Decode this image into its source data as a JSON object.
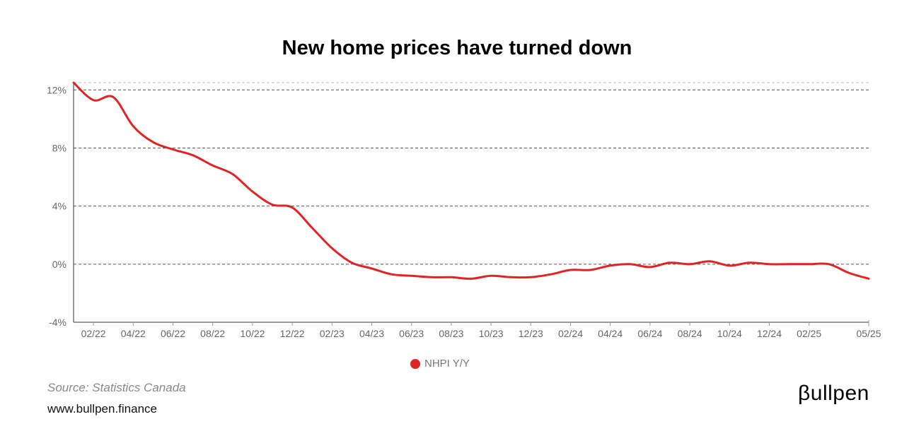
{
  "chart_data": {
    "type": "line",
    "title": "New home prices have turned down",
    "xlabel": "",
    "ylabel": "",
    "ylim": [
      -4,
      12.5
    ],
    "y_ticks": [
      -4,
      0,
      4,
      8,
      12
    ],
    "y_tick_labels": [
      "-4%",
      "0%",
      "4%",
      "8%",
      "12%"
    ],
    "x_tick_labels": [
      "02/22",
      "04/22",
      "06/22",
      "08/22",
      "10/22",
      "12/22",
      "02/23",
      "04/23",
      "06/23",
      "08/23",
      "10/23",
      "12/23",
      "02/24",
      "04/24",
      "06/24",
      "08/24",
      "10/24",
      "12/24",
      "02/25",
      "05/25"
    ],
    "x_tick_months": [
      "2022-02",
      "2022-04",
      "2022-06",
      "2022-08",
      "2022-10",
      "2022-12",
      "2023-02",
      "2023-04",
      "2023-06",
      "2023-08",
      "2023-10",
      "2023-12",
      "2024-02",
      "2024-04",
      "2024-06",
      "2024-08",
      "2024-10",
      "2024-12",
      "2025-02",
      "2025-05"
    ],
    "x_range": [
      "2022-01",
      "2025-05"
    ],
    "grid": "horizontal dashed",
    "legend_position": "bottom-center",
    "series": [
      {
        "name": "NHPI Y/Y",
        "color": "#e02424",
        "x": [
          "2022-01",
          "2022-02",
          "2022-03",
          "2022-04",
          "2022-05",
          "2022-06",
          "2022-07",
          "2022-08",
          "2022-09",
          "2022-10",
          "2022-11",
          "2022-12",
          "2023-01",
          "2023-02",
          "2023-03",
          "2023-04",
          "2023-05",
          "2023-06",
          "2023-07",
          "2023-08",
          "2023-09",
          "2023-10",
          "2023-11",
          "2023-12",
          "2024-01",
          "2024-02",
          "2024-03",
          "2024-04",
          "2024-05",
          "2024-06",
          "2024-07",
          "2024-08",
          "2024-09",
          "2024-10",
          "2024-11",
          "2024-12",
          "2025-01",
          "2025-02",
          "2025-03",
          "2025-04",
          "2025-05"
        ],
        "values": [
          12.5,
          11.3,
          11.5,
          9.5,
          8.4,
          7.9,
          7.5,
          6.8,
          6.2,
          5.0,
          4.1,
          3.9,
          2.5,
          1.1,
          0.1,
          -0.3,
          -0.7,
          -0.8,
          -0.9,
          -0.9,
          -1.0,
          -0.8,
          -0.9,
          -0.9,
          -0.7,
          -0.4,
          -0.4,
          -0.1,
          0.0,
          -0.2,
          0.1,
          0.0,
          0.2,
          -0.1,
          0.1,
          0.0,
          0.0,
          0.0,
          0.0,
          -0.6,
          -1.0
        ]
      }
    ]
  },
  "source_text": "Source: Statistics Canada",
  "website_text": "www.bullpen.finance",
  "brand_text": "βullpen"
}
